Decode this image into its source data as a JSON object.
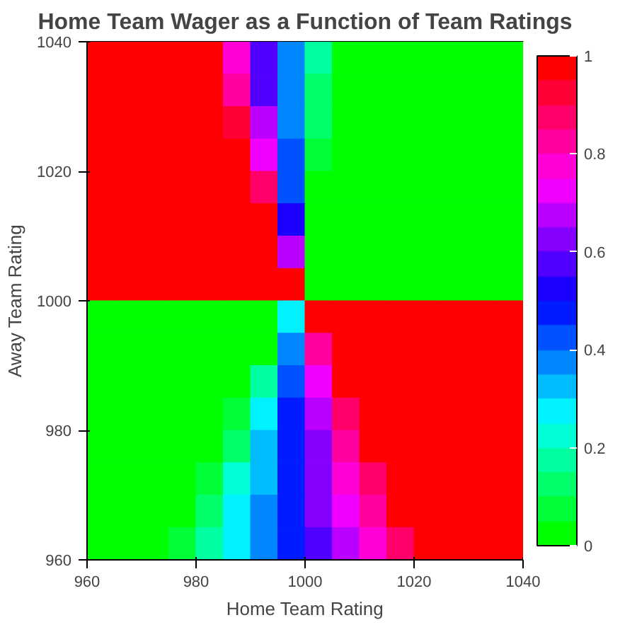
{
  "chart_data": {
    "type": "heatmap",
    "title": "Home Team Wager as a Function of Team Ratings",
    "xlabel": "Home Team Rating",
    "ylabel": "Away Team Rating",
    "x": [
      962.5,
      967.5,
      972.5,
      977.5,
      982.5,
      987.5,
      992.5,
      997.5,
      1002.5,
      1007.5,
      1012.5,
      1017.5,
      1022.5,
      1027.5,
      1032.5,
      1037.5
    ],
    "y": [
      1037.5,
      1032.5,
      1027.5,
      1022.5,
      1017.5,
      1012.5,
      1007.5,
      1002.5,
      997.5,
      992.5,
      987.5,
      982.5,
      977.5,
      972.5,
      967.5,
      962.5
    ],
    "xlim": [
      960,
      1040
    ],
    "xticks": [
      960,
      980,
      1000,
      1020,
      1040
    ],
    "ylim": [
      960,
      1040
    ],
    "yticks": [
      960,
      980,
      1000,
      1020,
      1040
    ],
    "clim": [
      0,
      1
    ],
    "cticks": [
      0,
      0.2,
      0.4,
      0.6,
      0.8,
      1
    ],
    "cells": [
      [
        1,
        1,
        1,
        1,
        0.95,
        0.75,
        0.55,
        0.35,
        0.15,
        0,
        0,
        0,
        0,
        0,
        0,
        0
      ],
      [
        1,
        1,
        1,
        1,
        1,
        0.8,
        0.55,
        0.35,
        0.1,
        0,
        0,
        0,
        0,
        0,
        0,
        0
      ],
      [
        1,
        1,
        1,
        1,
        1,
        0.9,
        0.65,
        0.35,
        0.1,
        0,
        0,
        0,
        0,
        0,
        0,
        0
      ],
      [
        1,
        1,
        1,
        1,
        1,
        1,
        0.7,
        0.4,
        0.05,
        0,
        0,
        0,
        0,
        0,
        0,
        0
      ],
      [
        1,
        1,
        1,
        1,
        1,
        1,
        0.85,
        0.4,
        0,
        0,
        0,
        0,
        0,
        0,
        0,
        0
      ],
      [
        1,
        1,
        1,
        1,
        1,
        1,
        1,
        0.5,
        0,
        0,
        0,
        0,
        0,
        0,
        0,
        0
      ],
      [
        1,
        1,
        1,
        1,
        1,
        1,
        1,
        0.65,
        0,
        0,
        0,
        0,
        0,
        0,
        0,
        0
      ],
      [
        1,
        1,
        1,
        1,
        1,
        1,
        1,
        1,
        0,
        0,
        0,
        0,
        0,
        0,
        0,
        0
      ],
      [
        0,
        0,
        0,
        0,
        0,
        0,
        0,
        0.25,
        1,
        1,
        1,
        1,
        1,
        1,
        1,
        1
      ],
      [
        0,
        0,
        0,
        0,
        0,
        0,
        0,
        0.35,
        0.8,
        1,
        1,
        1,
        1,
        1,
        1,
        1
      ],
      [
        0,
        0,
        0,
        0,
        0,
        0,
        0.15,
        0.4,
        0.7,
        0.95,
        1,
        1,
        1,
        1,
        1,
        1
      ],
      [
        0,
        0,
        0,
        0,
        0,
        0.05,
        0.25,
        0.45,
        0.65,
        0.85,
        1,
        1,
        1,
        1,
        1,
        1
      ],
      [
        0,
        0,
        0,
        0,
        0,
        0.1,
        0.3,
        0.45,
        0.6,
        0.8,
        0.95,
        1,
        1,
        1,
        1,
        1
      ],
      [
        0,
        0,
        0,
        0,
        0.05,
        0.2,
        0.3,
        0.45,
        0.6,
        0.75,
        0.85,
        1,
        1,
        1,
        1,
        1
      ],
      [
        0,
        0,
        0,
        0,
        0.1,
        0.25,
        0.35,
        0.45,
        0.6,
        0.7,
        0.8,
        0.95,
        1,
        1,
        1,
        1
      ],
      [
        0,
        0,
        0,
        0.05,
        0.15,
        0.25,
        0.35,
        0.45,
        0.55,
        0.65,
        0.75,
        0.85,
        1,
        1,
        1,
        1
      ]
    ]
  }
}
